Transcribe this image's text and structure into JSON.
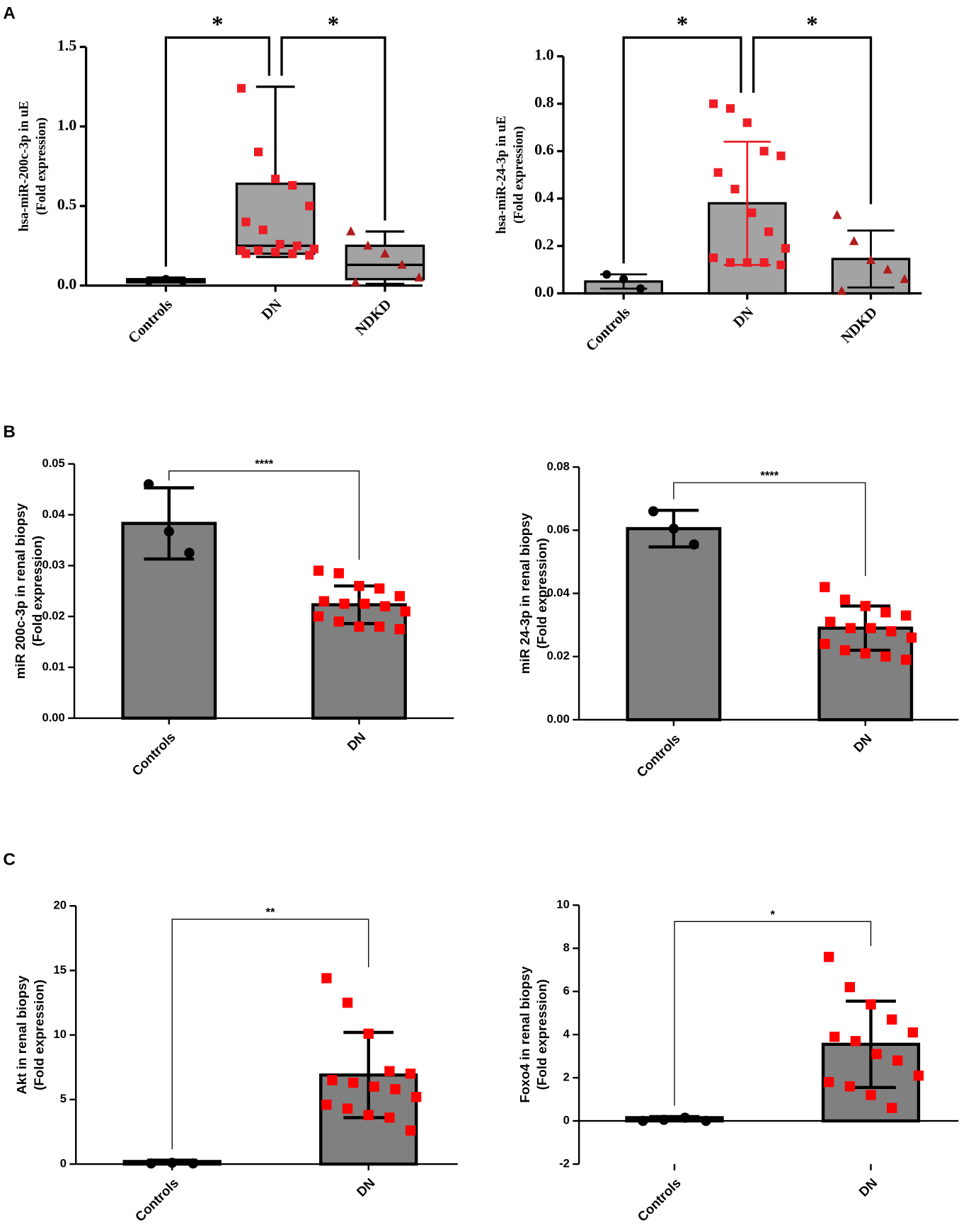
{
  "panel_labels": [
    "A",
    "B",
    "C"
  ],
  "chart_data": [
    {
      "type": "box",
      "ylabel": [
        "hsa-miR-200c-3p in uE",
        "(Fold expression)"
      ],
      "categories": [
        "Controls",
        "DN",
        "NDKD"
      ],
      "ylim": [
        0,
        1.5
      ],
      "yticks": [
        {
          "value": 0,
          "label": "0.0"
        },
        0.5,
        {
          "value": 1,
          "label": "1.0"
        },
        1.5
      ],
      "box": [
        {
          "min": 0.02,
          "q1": 0.02,
          "median": 0.03,
          "q3": 0.04,
          "max": 0.05
        },
        {
          "min": 0.18,
          "q1": 0.2,
          "median": 0.25,
          "q3": 0.64,
          "max": 1.25
        },
        {
          "min": 0.01,
          "q1": 0.04,
          "median": 0.13,
          "q3": 0.25,
          "max": 0.34
        }
      ],
      "points": [
        [
          0.03,
          0.04,
          0.03
        ],
        [
          1.24,
          0.84,
          0.67,
          0.63,
          0.5,
          0.4,
          0.35,
          0.26,
          0.25,
          0.23,
          0.22,
          0.22,
          0.21,
          0.2,
          0.19,
          0.2
        ],
        [
          0.34,
          0.25,
          0.2,
          0.13,
          0.05,
          0.02
        ]
      ],
      "markers": [
        "circle",
        "square",
        "triangle"
      ],
      "point_colors": [
        "#000000",
        "#ee1c25",
        "#b01c1c"
      ],
      "box_color": "#a3a3a3",
      "significance": [
        {
          "between": [
            "Controls",
            "DN"
          ],
          "label": "*"
        },
        {
          "between": [
            "DN",
            "NDKD"
          ],
          "label": "*"
        }
      ]
    },
    {
      "type": "bar",
      "ylabel": [
        "hsa-miR-24-3p in uE",
        "(Fold expression)"
      ],
      "categories": [
        "Controls",
        "DN",
        "NDKD"
      ],
      "ylim": [
        0,
        1
      ],
      "yticks": [
        {
          "value": 0,
          "label": "0.0"
        },
        0.2,
        0.4,
        0.6,
        0.8,
        {
          "value": 1,
          "label": "1.0"
        }
      ],
      "values": [
        0.05,
        0.38,
        0.145
      ],
      "errors": [
        0.03,
        0.26,
        0.12
      ],
      "points": [
        [
          0.08,
          0.06,
          0.02
        ],
        [
          0.8,
          0.78,
          0.72,
          0.6,
          0.58,
          0.51,
          0.44,
          0.34,
          0.26,
          0.19,
          0.15,
          0.13,
          0.13,
          0.13,
          0.12
        ],
        [
          0.33,
          0.22,
          0.14,
          0.1,
          0.06,
          0.01
        ]
      ],
      "markers": [
        "circle",
        "square",
        "triangle"
      ],
      "point_colors": [
        "#000000",
        "#ee1c25",
        "#b01c1c"
      ],
      "error_colors": [
        "#000000",
        "#ee1c25",
        "#000000"
      ],
      "color": "#a3a3a3",
      "significance": [
        {
          "between": [
            "Controls",
            "DN"
          ],
          "label": "*"
        },
        {
          "between": [
            "DN",
            "NDKD"
          ],
          "label": "*"
        }
      ]
    },
    {
      "type": "bar",
      "ylabel": [
        "miR 200c-3p in renal biopsy",
        "(Fold expression)"
      ],
      "categories": [
        "Controls",
        "DN"
      ],
      "ylim": [
        0,
        0.05
      ],
      "yticks": [
        {
          "value": 0,
          "label": "0.00"
        },
        {
          "value": 0.01,
          "label": "0.01"
        },
        {
          "value": 0.02,
          "label": "0.02"
        },
        {
          "value": 0.03,
          "label": "0.03"
        },
        {
          "value": 0.04,
          "label": "0.04"
        },
        {
          "value": 0.05,
          "label": "0.05"
        }
      ],
      "values": [
        0.0383,
        0.0223
      ],
      "errors": [
        0.007,
        0.0037
      ],
      "points": [
        [
          0.046,
          0.0367,
          0.0325
        ],
        [
          0.029,
          0.0285,
          0.026,
          0.0255,
          0.024,
          0.023,
          0.0225,
          0.0225,
          0.022,
          0.021,
          0.02,
          0.019,
          0.018,
          0.018,
          0.0175
        ]
      ],
      "markers": [
        "circle",
        "square"
      ],
      "point_colors": [
        "#000000",
        "#ff0000"
      ],
      "error_colors": [
        "#000000",
        "#000000"
      ],
      "color": "#808080",
      "significance": [
        {
          "between": [
            "Controls",
            "DN"
          ],
          "label": "****"
        }
      ]
    },
    {
      "type": "bar",
      "ylabel": [
        "miR 24-3p in renal biopsy",
        "(Fold expression)"
      ],
      "categories": [
        "Controls",
        "DN"
      ],
      "ylim": [
        0,
        0.08
      ],
      "yticks": [
        {
          "value": 0,
          "label": "0.00"
        },
        {
          "value": 0.02,
          "label": "0.02"
        },
        {
          "value": 0.04,
          "label": "0.04"
        },
        {
          "value": 0.06,
          "label": "0.06"
        },
        {
          "value": 0.08,
          "label": "0.08"
        }
      ],
      "values": [
        0.0605,
        0.029
      ],
      "errors": [
        0.0058,
        0.007
      ],
      "points": [
        [
          0.066,
          0.0605,
          0.0555
        ],
        [
          0.042,
          0.038,
          0.036,
          0.034,
          0.033,
          0.031,
          0.029,
          0.029,
          0.028,
          0.026,
          0.024,
          0.022,
          0.021,
          0.02,
          0.019
        ]
      ],
      "markers": [
        "circle",
        "square"
      ],
      "point_colors": [
        "#000000",
        "#ff0000"
      ],
      "error_colors": [
        "#000000",
        "#000000"
      ],
      "color": "#808080",
      "significance": [
        {
          "between": [
            "Controls",
            "DN"
          ],
          "label": "****"
        }
      ]
    },
    {
      "type": "bar",
      "ylabel": [
        "Akt in renal biopsy",
        "(Fold expression)"
      ],
      "categories": [
        "Controls",
        "DN"
      ],
      "ylim": [
        0,
        20
      ],
      "yticks": [
        0,
        5,
        10,
        15,
        20
      ],
      "values": [
        0.2,
        6.9
      ],
      "errors": [
        0.1,
        3.3
      ],
      "points": [
        [
          0.05,
          0.1,
          0.05
        ],
        [
          14.4,
          12.5,
          10.1,
          7.2,
          7,
          6.5,
          6.3,
          6,
          5.8,
          5.2,
          4.6,
          4.3,
          3.8,
          3.6,
          2.6
        ]
      ],
      "markers": [
        "circle",
        "square"
      ],
      "point_colors": [
        "#000000",
        "#ff0000"
      ],
      "error_colors": [
        "#000000",
        "#000000"
      ],
      "color": "#808080",
      "significance": [
        {
          "between": [
            "Controls",
            "DN"
          ],
          "label": "**"
        }
      ]
    },
    {
      "type": "bar",
      "ylabel": [
        "Foxo4 in renal biopsy",
        "(Fold expression)"
      ],
      "categories": [
        "Controls",
        "DN"
      ],
      "ylim": [
        -2,
        10
      ],
      "yticks": [
        -2,
        0,
        2,
        4,
        6,
        8,
        10
      ],
      "values": [
        0.15,
        3.55
      ],
      "errors": [
        0.05,
        2.0
      ],
      "points": [
        [
          0,
          0.05,
          0.15,
          0
        ],
        [
          7.6,
          6.2,
          5.4,
          4.7,
          4.1,
          3.9,
          3.7,
          3.1,
          2.8,
          2.1,
          1.8,
          1.6,
          1.2,
          0.6
        ]
      ],
      "markers": [
        "circle",
        "square"
      ],
      "point_colors": [
        "#000000",
        "#ff0000"
      ],
      "error_colors": [
        "#000000",
        "#000000"
      ],
      "color": "#808080",
      "significance": [
        {
          "between": [
            "Controls",
            "DN"
          ],
          "label": "*"
        }
      ]
    }
  ]
}
